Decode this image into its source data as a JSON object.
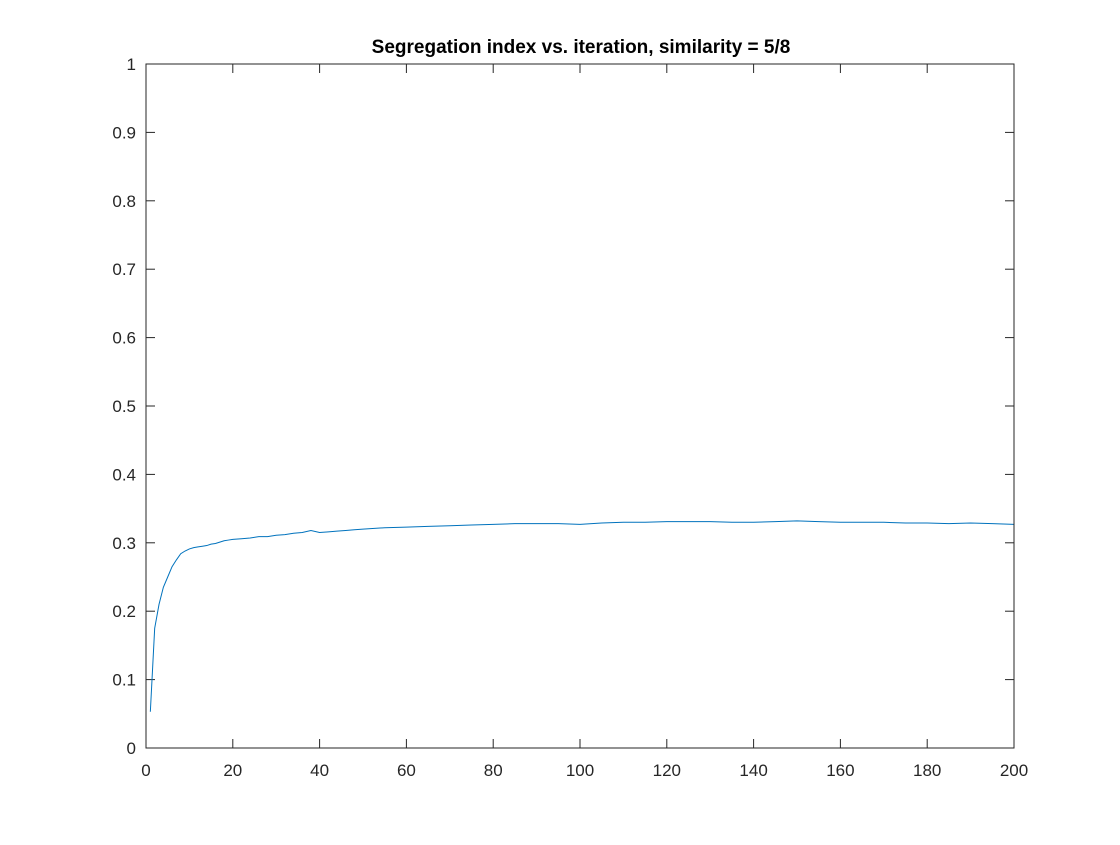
{
  "chart_data": {
    "type": "line",
    "title": "Segregation index vs. iteration, similarity = 5/8",
    "xlabel": "",
    "ylabel": "",
    "xlim": [
      0,
      200
    ],
    "ylim": [
      0,
      1
    ],
    "xticks": [
      0,
      20,
      40,
      60,
      80,
      100,
      120,
      140,
      160,
      180,
      200
    ],
    "xtick_labels": [
      "0",
      "20",
      "40",
      "60",
      "80",
      "100",
      "120",
      "140",
      "160",
      "180",
      "200"
    ],
    "yticks": [
      0,
      0.1,
      0.2,
      0.3,
      0.4,
      0.5,
      0.6,
      0.7,
      0.8,
      0.9,
      1
    ],
    "ytick_labels": [
      "0",
      "0.1",
      "0.2",
      "0.3",
      "0.4",
      "0.5",
      "0.6",
      "0.7",
      "0.8",
      "0.9",
      "1"
    ],
    "grid": false,
    "legend": "none",
    "line_color": "#0072BD",
    "series": [
      {
        "x": [
          1,
          2,
          3,
          4,
          5,
          6,
          7,
          8,
          9,
          10,
          11,
          12,
          13,
          14,
          15,
          16,
          17,
          18,
          19,
          20,
          22,
          24,
          26,
          28,
          30,
          32,
          34,
          36,
          38,
          40,
          42,
          44,
          46,
          48,
          50,
          55,
          60,
          65,
          70,
          75,
          80,
          85,
          90,
          95,
          100,
          105,
          110,
          115,
          120,
          125,
          130,
          135,
          140,
          145,
          150,
          155,
          160,
          165,
          170,
          175,
          180,
          185,
          190,
          195,
          200
        ],
        "y": [
          0.053,
          0.175,
          0.21,
          0.235,
          0.25,
          0.265,
          0.275,
          0.284,
          0.288,
          0.291,
          0.293,
          0.294,
          0.295,
          0.296,
          0.298,
          0.299,
          0.301,
          0.303,
          0.304,
          0.305,
          0.306,
          0.307,
          0.309,
          0.309,
          0.311,
          0.312,
          0.314,
          0.315,
          0.318,
          0.315,
          0.316,
          0.317,
          0.318,
          0.319,
          0.32,
          0.322,
          0.323,
          0.324,
          0.325,
          0.326,
          0.327,
          0.328,
          0.328,
          0.328,
          0.327,
          0.329,
          0.33,
          0.33,
          0.331,
          0.331,
          0.331,
          0.33,
          0.33,
          0.331,
          0.332,
          0.331,
          0.33,
          0.33,
          0.33,
          0.329,
          0.329,
          0.328,
          0.329,
          0.328,
          0.327
        ]
      }
    ]
  }
}
